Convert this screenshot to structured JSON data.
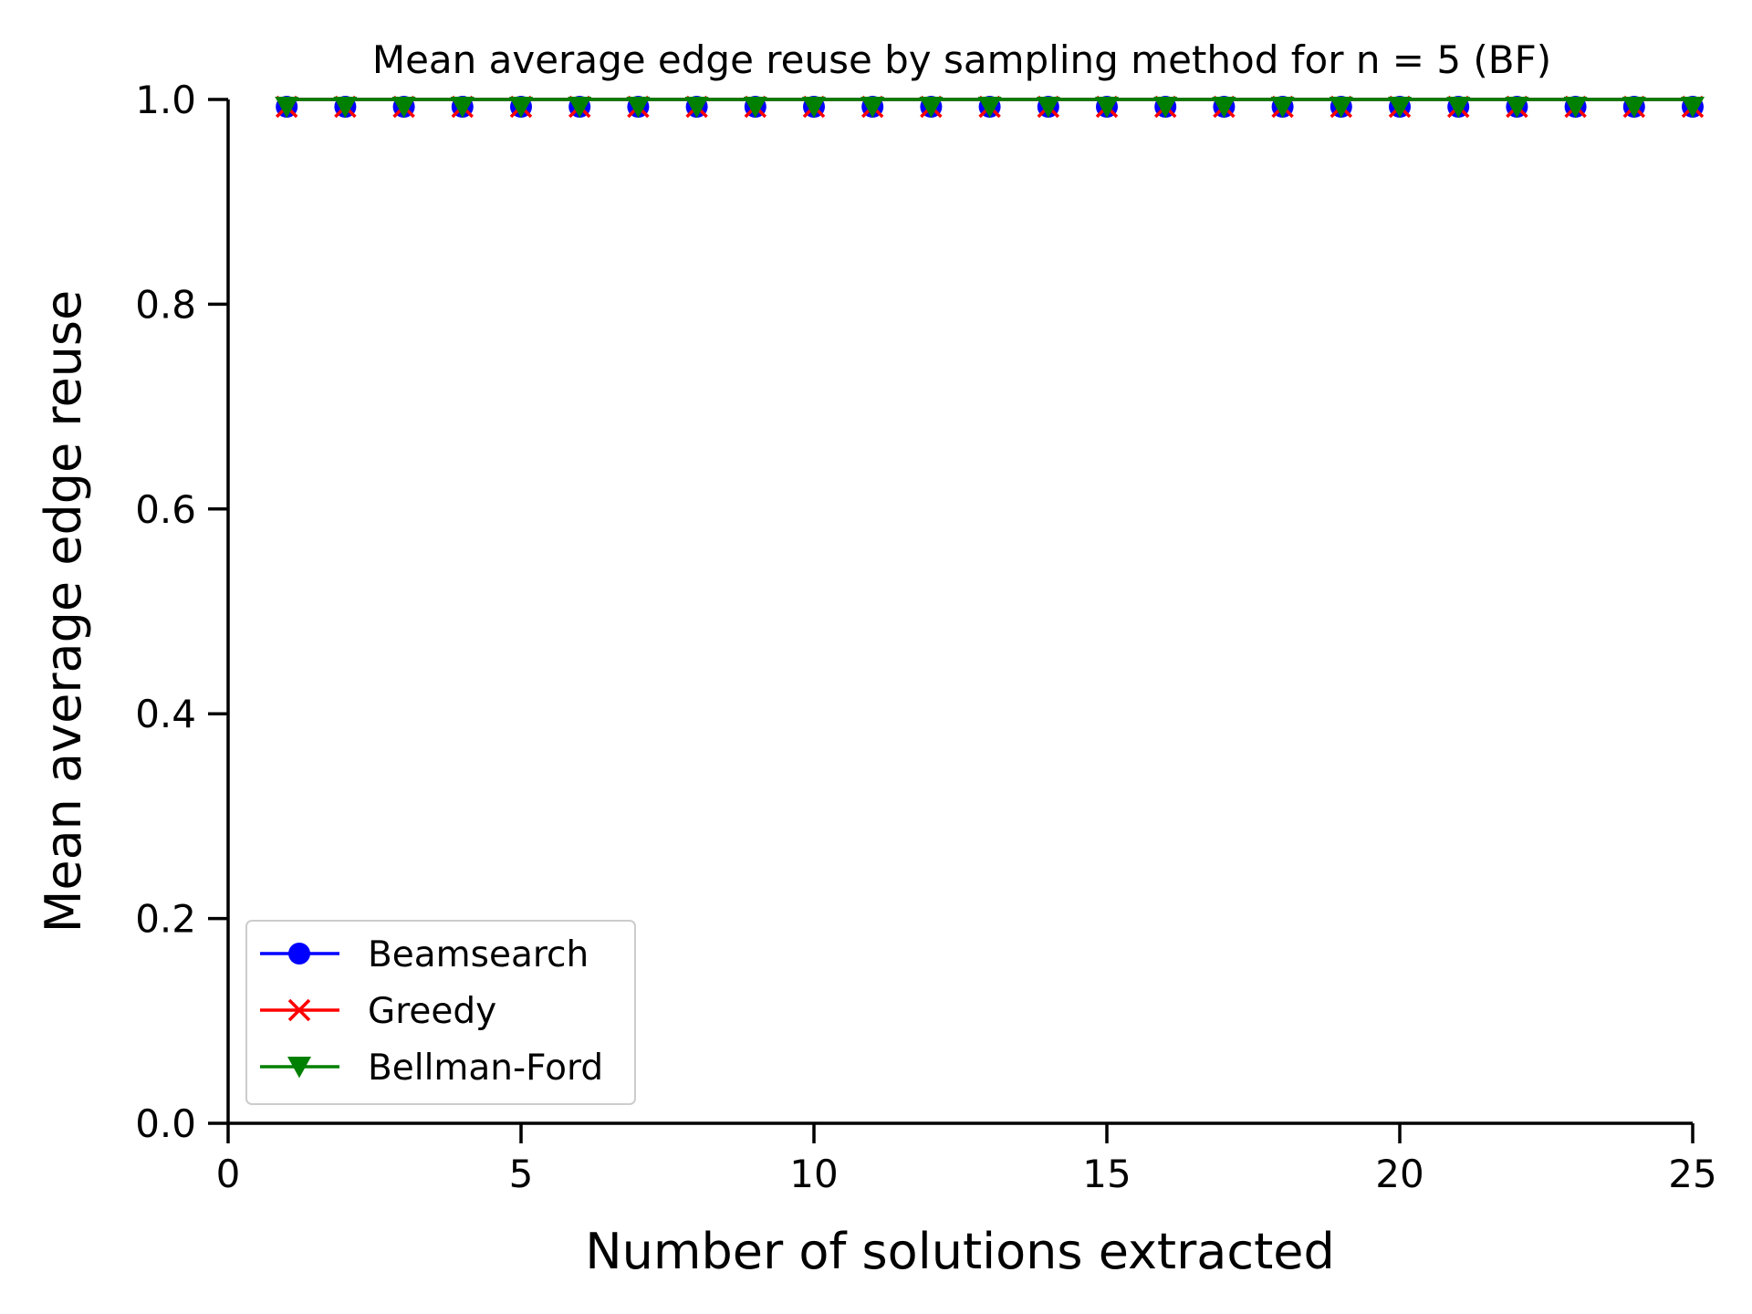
{
  "chart_data": {
    "type": "line",
    "title": "Mean average edge reuse by sampling method for n = 5 (BF)",
    "xlabel": "Number of solutions extracted",
    "ylabel": "Mean average edge reuse",
    "xlim": [
      0,
      25
    ],
    "ylim": [
      0.0,
      1.0
    ],
    "xticks": [
      "0",
      "5",
      "10",
      "15",
      "20",
      "25"
    ],
    "yticks": [
      "0.0",
      "0.2",
      "0.4",
      "0.6",
      "0.8",
      "1.0"
    ],
    "grid": false,
    "legend_position": "lower-left",
    "x": [
      1,
      2,
      3,
      4,
      5,
      6,
      7,
      8,
      9,
      10,
      11,
      12,
      13,
      14,
      15,
      16,
      17,
      18,
      19,
      20,
      21,
      22,
      23,
      24,
      25
    ],
    "series": [
      {
        "name": "Beamsearch",
        "color": "#0000ff",
        "marker": "circle",
        "values": [
          1.0,
          1.0,
          1.0,
          1.0,
          1.0,
          1.0,
          1.0,
          1.0,
          1.0,
          1.0,
          1.0,
          1.0,
          1.0,
          1.0,
          1.0,
          1.0,
          1.0,
          1.0,
          1.0,
          1.0,
          1.0,
          1.0,
          1.0,
          1.0,
          1.0
        ]
      },
      {
        "name": "Greedy",
        "color": "#ff0000",
        "marker": "x",
        "values": [
          1.0,
          1.0,
          1.0,
          1.0,
          1.0,
          1.0,
          1.0,
          1.0,
          1.0,
          1.0,
          1.0,
          1.0,
          1.0,
          1.0,
          1.0,
          1.0,
          1.0,
          1.0,
          1.0,
          1.0,
          1.0,
          1.0,
          1.0,
          1.0,
          1.0
        ]
      },
      {
        "name": "Bellman-Ford",
        "color": "#008000",
        "marker": "triangle-down",
        "values": [
          1.0,
          1.0,
          1.0,
          1.0,
          1.0,
          1.0,
          1.0,
          1.0,
          1.0,
          1.0,
          1.0,
          1.0,
          1.0,
          1.0,
          1.0,
          1.0,
          1.0,
          1.0,
          1.0,
          1.0,
          1.0,
          1.0,
          1.0,
          1.0,
          1.0
        ]
      }
    ]
  }
}
